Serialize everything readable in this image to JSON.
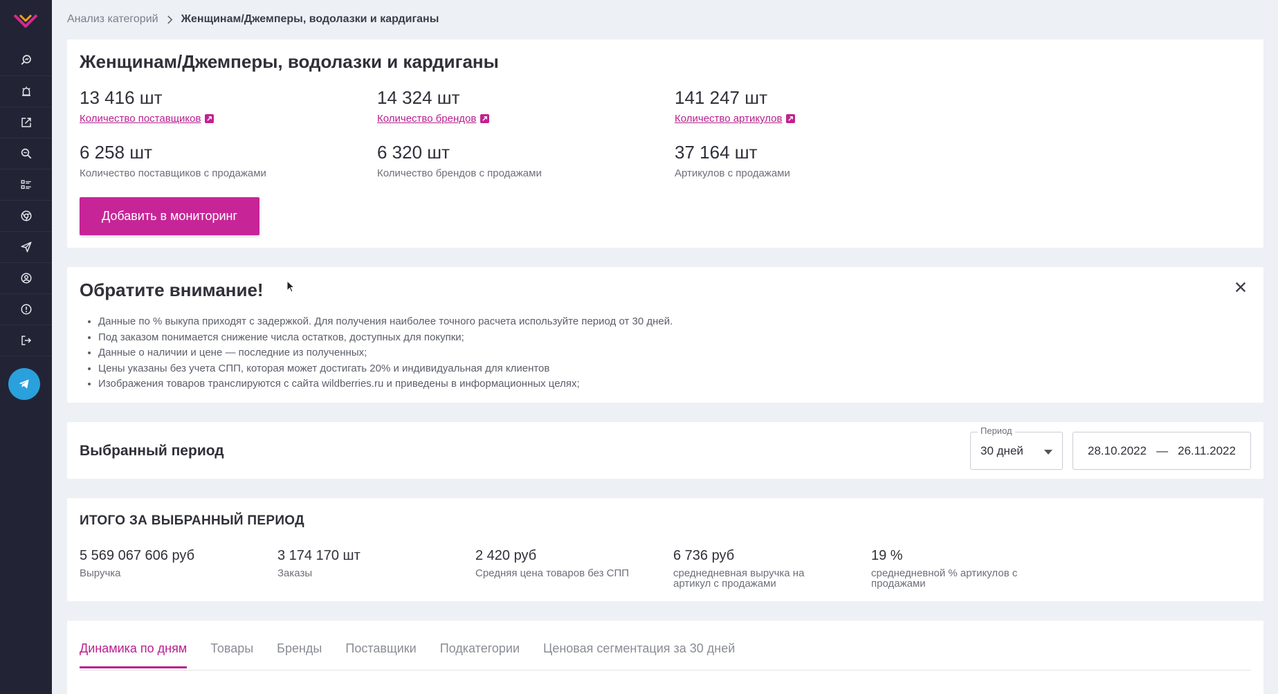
{
  "breadcrumb": {
    "root": "Анализ категорий",
    "current": "Женщинам/Джемперы, водолазки и кардиганы"
  },
  "category": {
    "title": "Женщинам/Джемперы, водолазки и кардиганы",
    "stats": [
      {
        "value": "13 416 шт",
        "label": "Количество поставщиков",
        "link": true
      },
      {
        "value": "14 324 шт",
        "label": "Количество брендов",
        "link": true
      },
      {
        "value": "141 247 шт",
        "label": "Количество артикулов",
        "link": true
      },
      {
        "value": "6 258 шт",
        "label": "Количество поставщиков с продажами",
        "link": false
      },
      {
        "value": "6 320 шт",
        "label": "Количество брендов с продажами",
        "link": false
      },
      {
        "value": "37 164 шт",
        "label": "Артикулов с продажами",
        "link": false
      }
    ],
    "add_button": "Добавить в мониторинг"
  },
  "notice": {
    "title": "Обратите внимание!",
    "items": [
      "Данные по % выкупа приходят с задержкой. Для получения наиболее точного расчета используйте период от 30 дней.",
      "Под заказом понимается снижение числа остатков, доступных для покупки;",
      "Данные о наличии и цене — последние из полученных;",
      "Цены указаны без учета СПП, которая может достигать 20% и индивидуальная для клиентов",
      "Изображения товаров транслируются с сайта wildberries.ru и приведены в информационных целях;"
    ]
  },
  "period": {
    "title": "Выбранный период",
    "select_legend": "Период",
    "select_value": "30 дней",
    "date_from": "28.10.2022",
    "date_sep": "—",
    "date_to": "26.11.2022"
  },
  "totals": {
    "title": "ИТОГО ЗА ВЫБРАННЫЙ ПЕРИОД",
    "items": [
      {
        "value": "5 569 067 606 руб",
        "label": "Выручка"
      },
      {
        "value": "3 174 170 шт",
        "label": "Заказы"
      },
      {
        "value": "2 420 руб",
        "label": "Средняя цена товаров без СПП"
      },
      {
        "value": "6 736 руб",
        "label": "среднедневная выручка на артикул с продажами"
      },
      {
        "value": "19 %",
        "label": "среднедневной % артикулов с продажами"
      }
    ]
  },
  "tabs": [
    {
      "label": "Динамика по дням",
      "active": true
    },
    {
      "label": "Товары",
      "active": false
    },
    {
      "label": "Бренды",
      "active": false
    },
    {
      "label": "Поставщики",
      "active": false
    },
    {
      "label": "Подкатегории",
      "active": false
    },
    {
      "label": "Ценовая сегментация за 30 дней",
      "active": false
    }
  ],
  "sidebar": {
    "icons": [
      "search-analytics-icon",
      "alarm-bell-icon",
      "edit-external-icon",
      "zoom-icon",
      "list-grid-icon",
      "chrome-icon",
      "send-icon",
      "user-circle-icon",
      "info-alert-icon",
      "logout-icon"
    ],
    "telegram_icon": "telegram-icon"
  },
  "colors": {
    "accent": "#c72597",
    "sidebar": "#222436",
    "background": "#edf0f4",
    "telegram": "#2aa0dc"
  }
}
